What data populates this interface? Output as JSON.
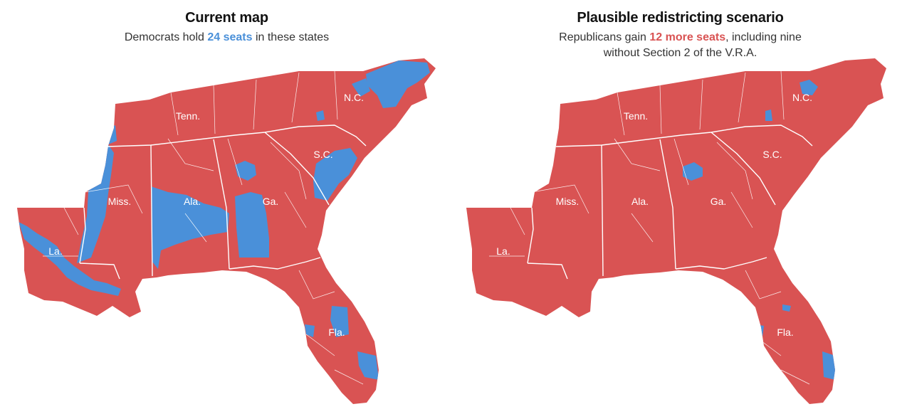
{
  "colors": {
    "republican": "#d95353",
    "democrat": "#4a90d9"
  },
  "panels": [
    {
      "title": "Current map",
      "subtitle_pre": "Democrats hold ",
      "subtitle_highlight": "24 seats",
      "subtitle_post": " in these states",
      "subtitle_line2": "",
      "highlight_color": "democrat"
    },
    {
      "title": "Plausible redistricting scenario",
      "subtitle_pre": "Republicans gain ",
      "subtitle_highlight": "12 more seats",
      "subtitle_post": ", including nine",
      "subtitle_line2": "without Section 2 of the V.R.A.",
      "highlight_color": "republican"
    }
  ],
  "state_labels": {
    "tenn": "Tenn.",
    "nc": "N.C.",
    "sc": "S.C.",
    "miss": "Miss.",
    "ala": "Ala.",
    "ga": "Ga.",
    "la": "La.",
    "fla": "Fla."
  }
}
